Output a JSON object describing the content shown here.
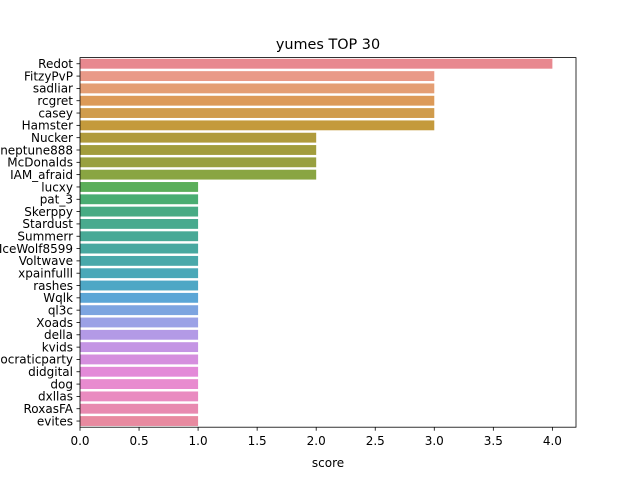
{
  "chart_data": {
    "type": "bar",
    "orientation": "horizontal",
    "title": "yumes TOP 30",
    "xlabel": "score",
    "ylabel": "",
    "xlim": [
      0,
      4.2
    ],
    "xticks": [
      "0.0",
      "0.5",
      "1.0",
      "1.5",
      "2.0",
      "2.5",
      "3.0",
      "3.5",
      "4.0"
    ],
    "grid": false,
    "legend": "none",
    "categories": [
      "Redot",
      "FitzyPvP",
      "sadliar",
      "rcgret",
      "casey",
      "Hamster",
      "Nucker",
      "neptune888",
      "McDonalds",
      "IAM_afraid",
      "lucxy",
      "pat_3",
      "Skerppy",
      "Stardust",
      "Summerr",
      "IceWolf8599",
      "Voltwave",
      "xpainfulll",
      "rashes",
      "Wqlk",
      "ql3c",
      "Xoads",
      "della",
      "kvids",
      "democraticparty",
      "didgital",
      "dog",
      "dxllas",
      "RoxasFA",
      "evites"
    ],
    "values": [
      4,
      3,
      3,
      3,
      3,
      3,
      2,
      2,
      2,
      2,
      1,
      1,
      1,
      1,
      1,
      1,
      1,
      1,
      1,
      1,
      1,
      1,
      1,
      1,
      1,
      1,
      1,
      1,
      1,
      1
    ],
    "colors": [
      "#e8888f",
      "#e99a88",
      "#e49e74",
      "#dc9a58",
      "#d09c4c",
      "#c49a3c",
      "#b09b3c",
      "#a29d3c",
      "#98a040",
      "#89a542",
      "#5bae5a",
      "#4aad72",
      "#48ab84",
      "#48aa8e",
      "#48a996",
      "#48a8a0",
      "#49a8aa",
      "#4aa8b8",
      "#4ea7c5",
      "#5ba6d6",
      "#7da4e0",
      "#9ba1e6",
      "#b39ae6",
      "#c495e4",
      "#d58fde",
      "#e38ad8",
      "#e88bcf",
      "#e98bc0",
      "#e88ab0",
      "#e88aa0"
    ]
  }
}
